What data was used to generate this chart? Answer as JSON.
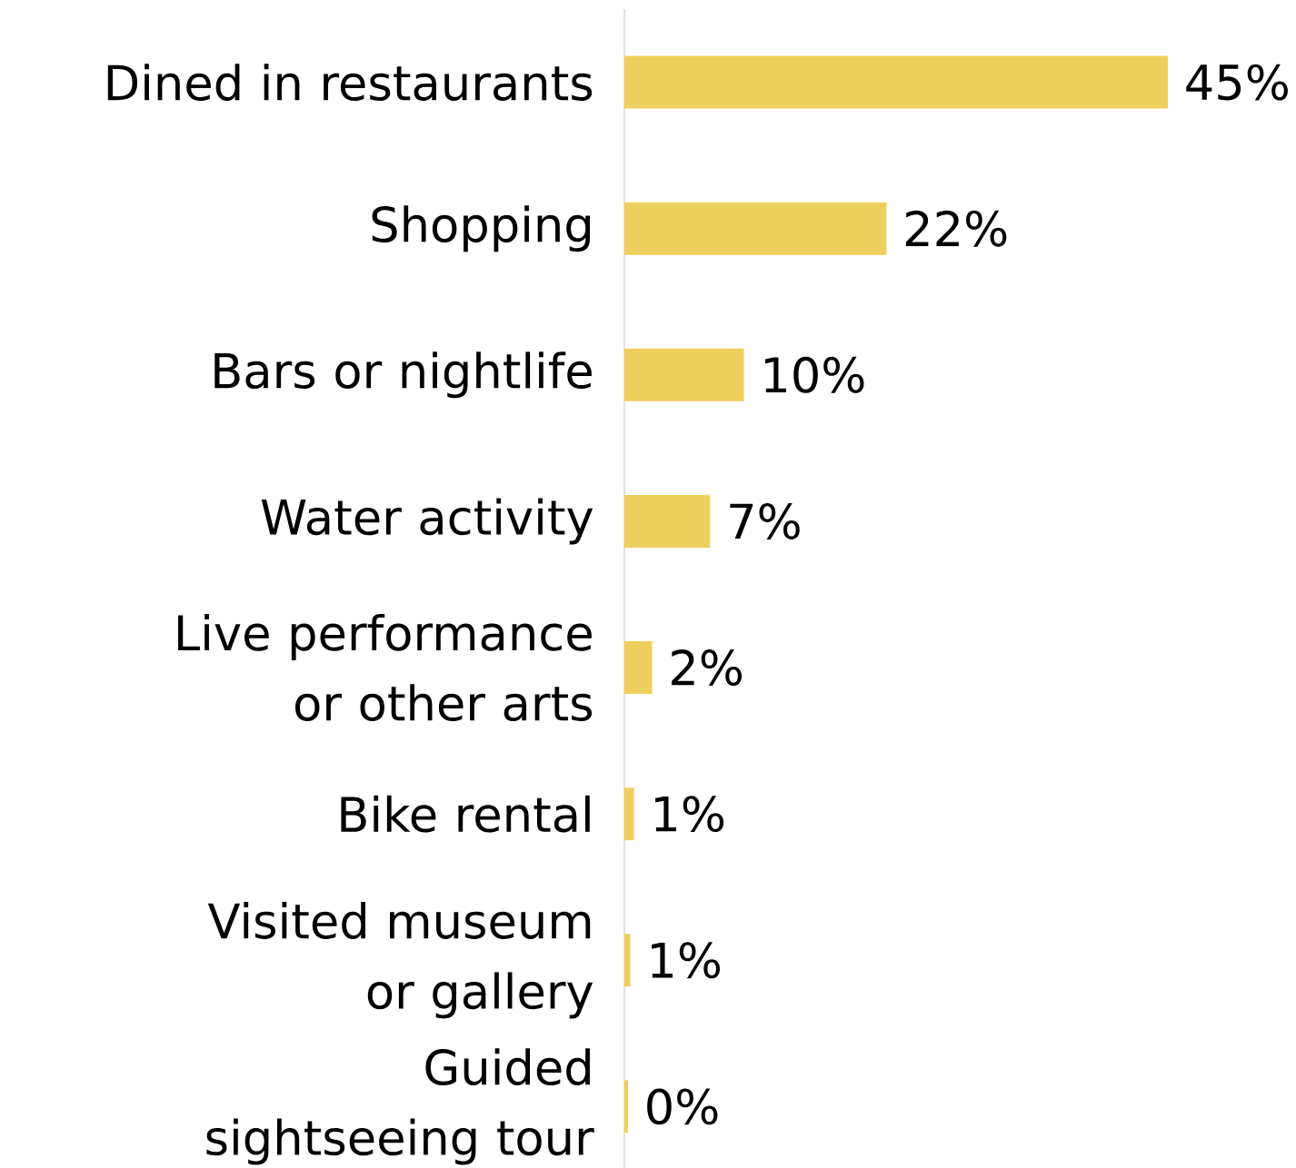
{
  "chart_data": {
    "type": "bar",
    "orientation": "horizontal",
    "categories": [
      "Dined in restaurants",
      "Shopping",
      "Bars or nightlife",
      "Water activity",
      "Live performance or other arts",
      "Bike rental",
      "Visited museum or gallery",
      "Guided sightseeing tour"
    ],
    "values": [
      45,
      21.7,
      9.9,
      7.1,
      2.3,
      0.8,
      0.5,
      0.3
    ],
    "value_labels": [
      "45%",
      "22%",
      "10%",
      "7%",
      "2%",
      "1%",
      "1%",
      "0%"
    ],
    "color": "#eecf5d"
  }
}
